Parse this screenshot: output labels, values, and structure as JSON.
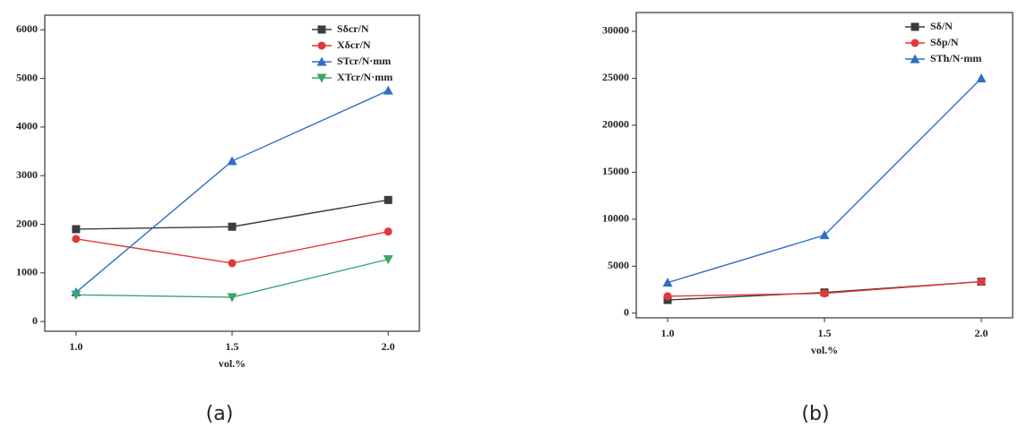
{
  "chart_data": [
    {
      "type": "line",
      "caption": "(a)",
      "x_label": "vol.%",
      "x": [
        1.0,
        1.5,
        2.0
      ],
      "xlim": [
        0.9,
        2.1
      ],
      "xticks": [
        {
          "value": 1.0,
          "label": "1.0"
        },
        {
          "value": 1.5,
          "label": "1.5"
        },
        {
          "value": 2.0,
          "label": "2.0"
        }
      ],
      "ylim": [
        -200,
        6300
      ],
      "yticks": [
        0,
        1000,
        2000,
        3000,
        4000,
        5000,
        6000
      ],
      "legend": "upper right",
      "series": [
        {
          "name": "Sδcr/N",
          "color": "#3c3c3c",
          "marker": "square",
          "values": [
            1900,
            1950,
            2500
          ]
        },
        {
          "name": "Xδcr/N",
          "color": "#e0393b",
          "marker": "circle",
          "values": [
            1700,
            1200,
            1850
          ]
        },
        {
          "name": "STcr/N·mm",
          "color": "#2f6fc4",
          "marker": "triangle-up",
          "values": [
            600,
            3300,
            4750
          ]
        },
        {
          "name": "XTcr/N·mm",
          "color": "#3aa56c",
          "marker": "triangle-down",
          "values": [
            550,
            500,
            1280
          ]
        }
      ]
    },
    {
      "type": "line",
      "caption": "(b)",
      "x_label": "vol.%",
      "x": [
        1.0,
        1.5,
        2.0
      ],
      "xlim": [
        0.9,
        2.1
      ],
      "xticks": [
        {
          "value": 1.0,
          "label": "1.0"
        },
        {
          "value": 1.5,
          "label": "1.5"
        },
        {
          "value": 2.0,
          "label": "2.0"
        }
      ],
      "ylim": [
        -500,
        32000
      ],
      "yticks": [
        0,
        5000,
        10000,
        15000,
        20000,
        25000,
        30000
      ],
      "legend": "upper right",
      "series": [
        {
          "name": "Sδ/N",
          "color": "#3c3c3c",
          "marker": "square",
          "values": [
            1400,
            2200,
            3350
          ]
        },
        {
          "name": "Sδp/N",
          "color": "#e0393b",
          "marker": "circle",
          "values": [
            1800,
            2100,
            3350
          ]
        },
        {
          "name": "STh/N·mm",
          "color": "#2f6fc4",
          "marker": "triangle-up",
          "values": [
            3250,
            8300,
            25000
          ]
        }
      ]
    }
  ]
}
